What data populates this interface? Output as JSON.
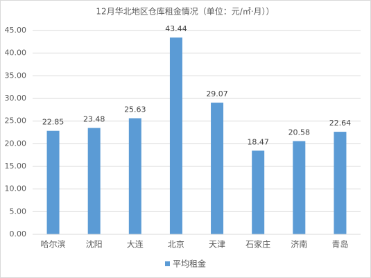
{
  "chart_data": {
    "type": "bar",
    "title": "12月华北地区仓库租金情况（单位：元/㎡·月））",
    "categories": [
      "哈尔滨",
      "沈阳",
      "大连",
      "北京",
      "天津",
      "石家庄",
      "济南",
      "青岛"
    ],
    "series": [
      {
        "name": "平均租金",
        "color": "#5b9bd5",
        "values": [
          22.85,
          23.48,
          25.63,
          43.44,
          29.07,
          18.47,
          20.58,
          22.64
        ]
      }
    ],
    "ylim": [
      0,
      45
    ],
    "yticks": [
      {
        "value": 0,
        "label": "0.00"
      },
      {
        "value": 5,
        "label": "5.00"
      },
      {
        "value": 10,
        "label": "10.00"
      },
      {
        "value": 15,
        "label": "15.00"
      },
      {
        "value": 20,
        "label": "20.00"
      },
      {
        "value": 25,
        "label": "25.00"
      },
      {
        "value": 30,
        "label": "30.00"
      },
      {
        "value": 35,
        "label": "35.00"
      },
      {
        "value": 40,
        "label": "40.00"
      },
      {
        "value": 45,
        "label": "45.00"
      }
    ],
    "grid": true,
    "legend": "bottom"
  }
}
